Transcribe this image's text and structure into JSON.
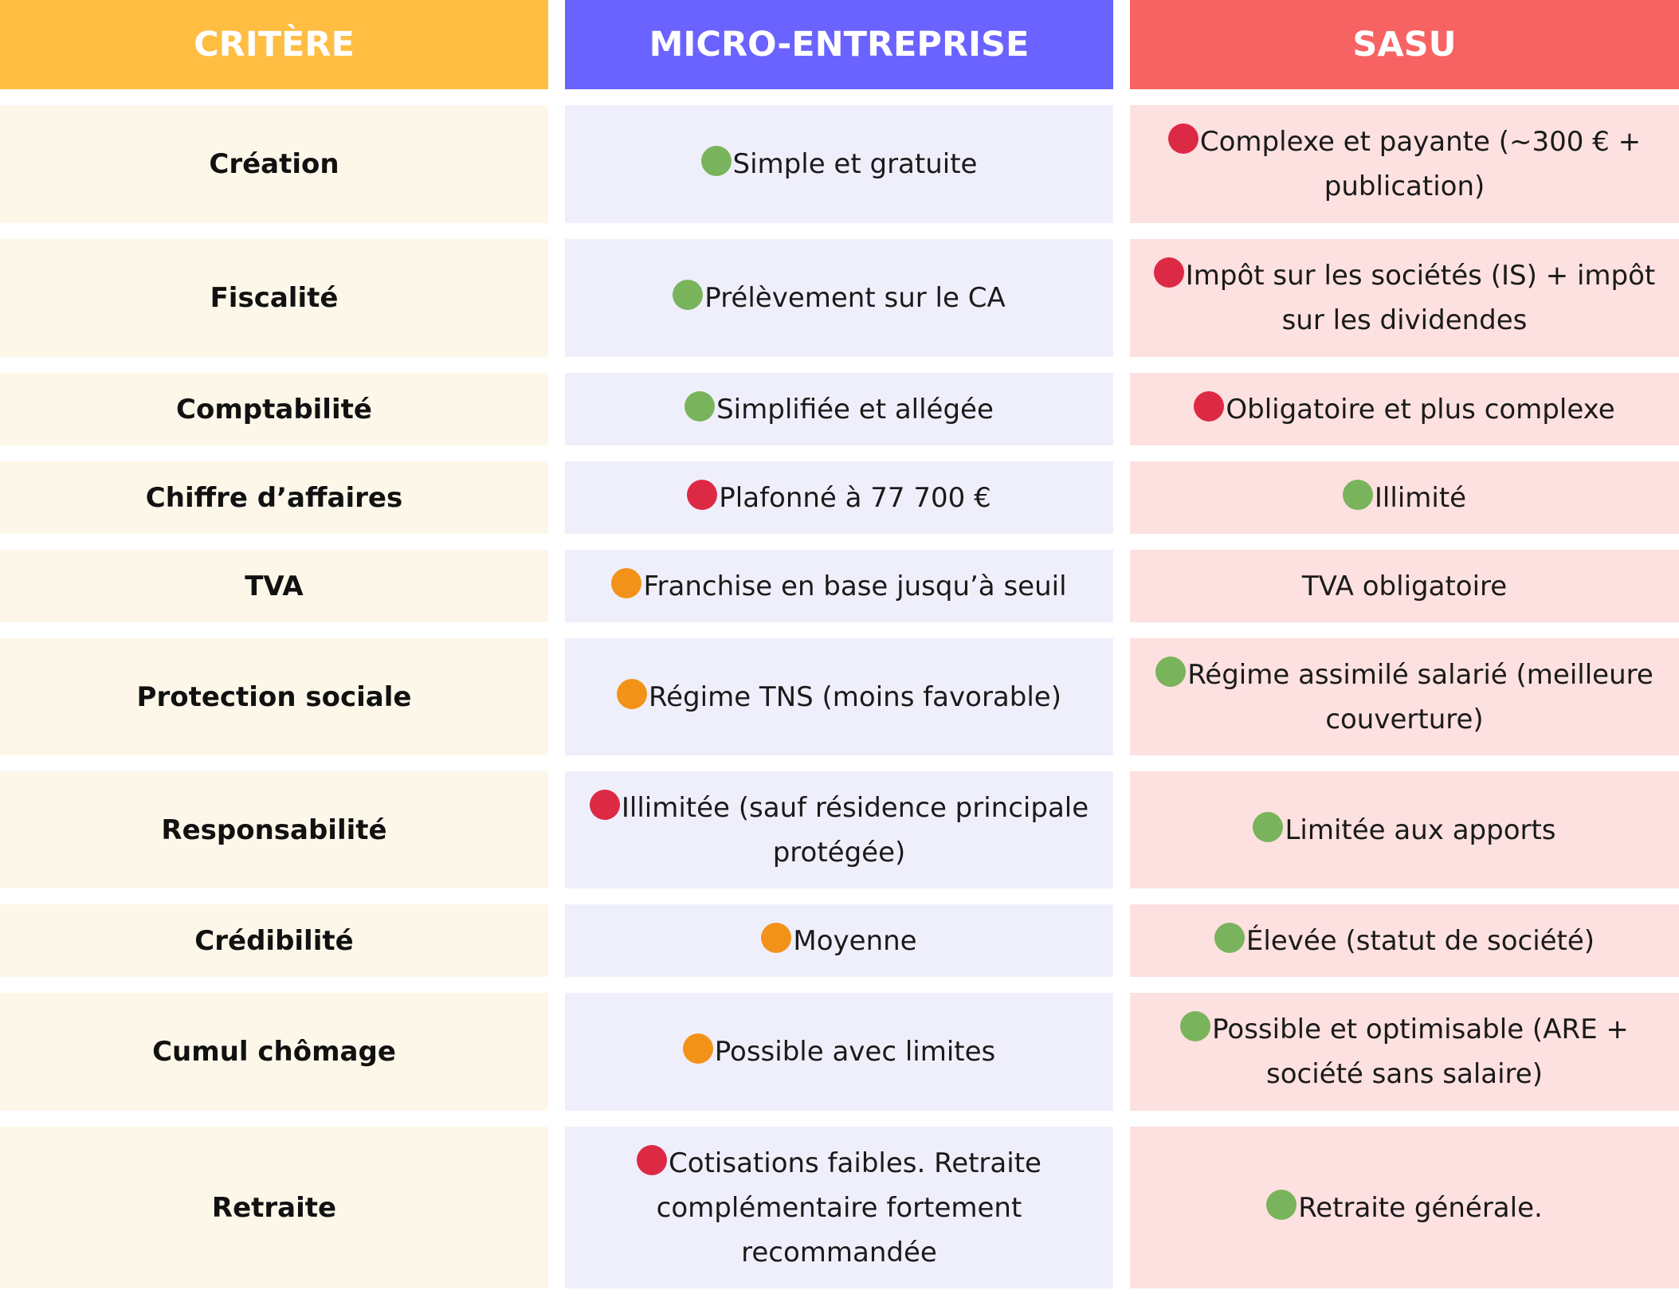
{
  "header": [
    "CRITÈRE",
    "MICRO-ENTREPRISE",
    "SASU"
  ],
  "dot_colors": {
    "green": "#79b35b",
    "red": "#dc2a45",
    "orange": "#f39218"
  },
  "rows": [
    {
      "criterion": "Création",
      "micro": {
        "color": "green",
        "text": "Simple et gratuite"
      },
      "sasu": {
        "color": "red",
        "text": "Complexe et payante (~300 € + publication)"
      }
    },
    {
      "criterion": "Fiscalité",
      "micro": {
        "color": "green",
        "text": "Prélèvement sur le CA"
      },
      "sasu": {
        "color": "red",
        "text": "Impôt sur les sociétés (IS) + impôt sur les dividendes"
      }
    },
    {
      "criterion": "Comptabilité",
      "micro": {
        "color": "green",
        "text": "Simplifiée et allégée"
      },
      "sasu": {
        "color": "red",
        "text": "Obligatoire et plus complexe"
      }
    },
    {
      "criterion": "Chiffre d’affaires",
      "micro": {
        "color": "red",
        "text": "Plafonné à 77 700 €"
      },
      "sasu": {
        "color": "green",
        "text": "Illimité"
      }
    },
    {
      "criterion": "TVA",
      "micro": {
        "color": "orange",
        "text": "Franchise en base jusqu’à seuil"
      },
      "sasu": {
        "text": "TVA obligatoire"
      }
    },
    {
      "criterion": "Protection sociale",
      "micro": {
        "color": "orange",
        "text": "Régime TNS (moins favorable)"
      },
      "sasu": {
        "color": "green",
        "text": "Régime assimilé salarié (meilleure couverture)"
      }
    },
    {
      "criterion": "Responsabilité",
      "micro": {
        "color": "red",
        "text": "Illimitée (sauf résidence principale protégée)"
      },
      "sasu": {
        "color": "green",
        "text": "Limitée aux apports"
      }
    },
    {
      "criterion": "Crédibilité",
      "micro": {
        "color": "orange",
        "text": "Moyenne"
      },
      "sasu": {
        "color": "green",
        "text": "Élevée (statut de société)"
      }
    },
    {
      "criterion": "Cumul chômage",
      "micro": {
        "color": "orange",
        "text": "Possible avec limites"
      },
      "sasu": {
        "color": "green",
        "text": "Possible et optimisable (ARE + société sans salaire)"
      }
    },
    {
      "criterion": "Retraite",
      "micro": {
        "color": "red",
        "text": "Cotisations faibles. Retraite complémentaire fortement recommandée"
      },
      "sasu": {
        "color": "green",
        "text": "Retraite générale."
      }
    }
  ]
}
